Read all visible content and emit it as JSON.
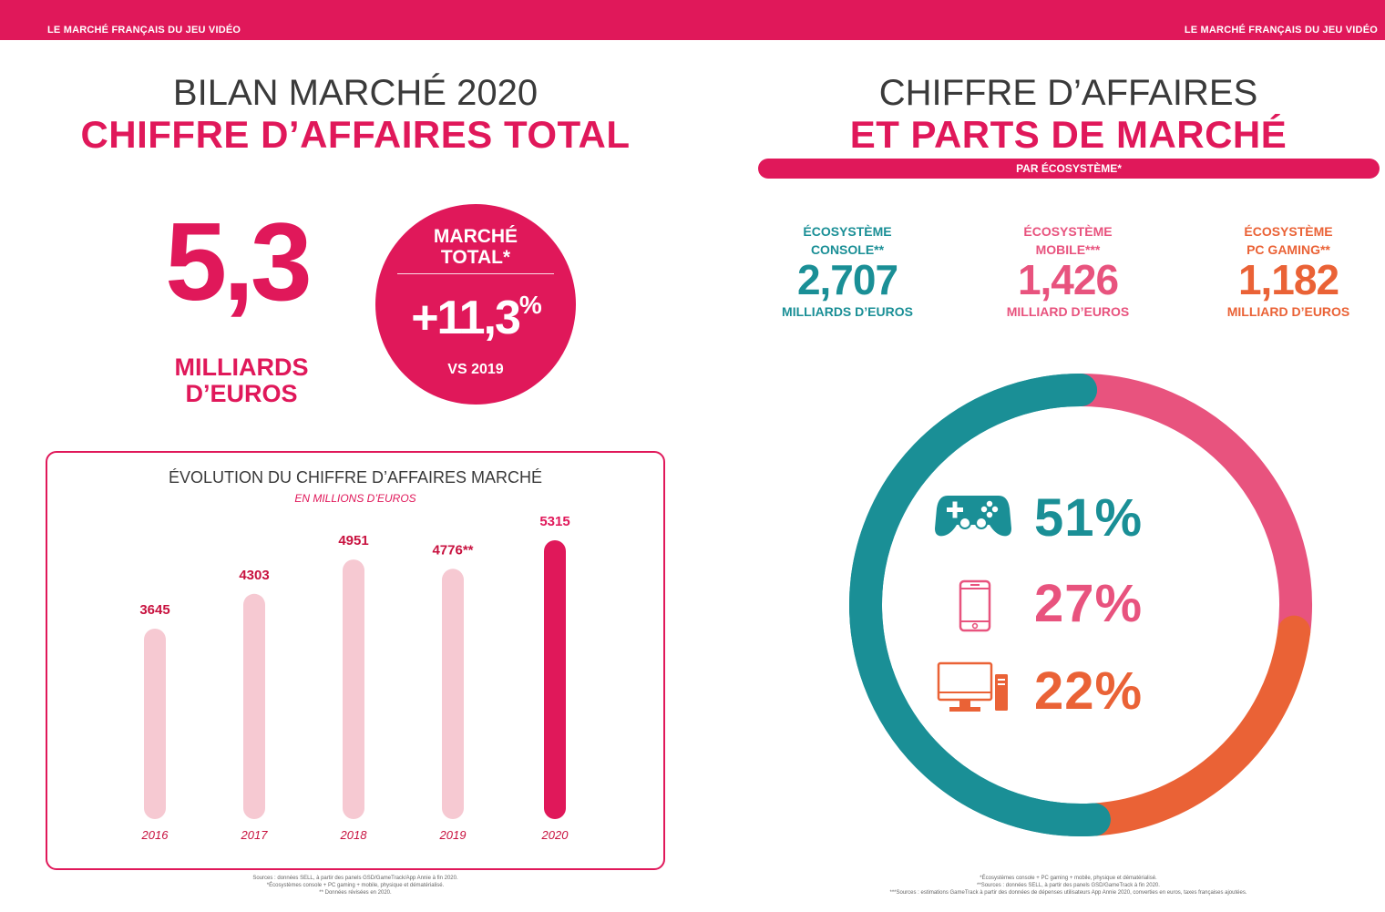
{
  "header": {
    "left_label": "LE MARCHÉ FRANÇAIS DU JEU VIDÉO",
    "right_label": "LE MARCHÉ FRANÇAIS DU JEU VIDÉO"
  },
  "colors": {
    "brand": "#e0185a",
    "console": "#1a8f96",
    "mobile": "#e8537e",
    "pc": "#ea6236",
    "bar_light": "#f6c9d2"
  },
  "left": {
    "title_line1": "BILAN MARCHÉ 2020",
    "title_line2": "CHIFFRE D’AFFAIRES TOTAL",
    "big_value": "5,3",
    "big_unit_line1": "MILLIARDS",
    "big_unit_line2": "D’EUROS",
    "circle": {
      "title_line1": "MARCHÉ",
      "title_line2": "TOTAL*",
      "value": "+11,3",
      "value_suffix": "%",
      "subtitle": "VS 2019"
    },
    "sources": [
      "Sources : données SELL, à partir des panels GSD/GameTrack/App Annie à fin 2020.",
      "*Écosystèmes console + PC gaming + mobile, physique et dématérialisé.",
      "** Données révisées en 2020."
    ]
  },
  "right": {
    "title_line1": "CHIFFRE D’AFFAIRES",
    "title_line2": "ET PARTS DE MARCHÉ",
    "pill": "PAR ÉCOSYSTÈME*",
    "ecosystems": [
      {
        "name_line1": "ÉCOSYSTÈME",
        "name_line2": "CONSOLE**",
        "value": "2,707",
        "unit": "MILLIARDS D’EUROS",
        "share": "51%"
      },
      {
        "name_line1": "ÉCOSYSTÈME",
        "name_line2": "MOBILE***",
        "value": "1,426",
        "unit": "MILLIARD D’EUROS",
        "share": "27%"
      },
      {
        "name_line1": "ÉCOSYSTÈME",
        "name_line2": "PC GAMING**",
        "value": "1,182",
        "unit": "MILLIARD D’EUROS",
        "share": "22%"
      }
    ],
    "icons": [
      "gamepad-icon",
      "smartphone-icon",
      "desktop-computer-icon"
    ],
    "sources": [
      "*Écosystèmes console + PC gaming + mobile, physique et dématérialisé.",
      "**Sources : données SELL, à partir des panels GSD/GameTrack à fin 2020.",
      "***Sources : estimations GameTrack à partir des données de dépenses utilisateurs App Annie 2020, converties en euros, taxes françaises ajoutées."
    ]
  },
  "chart_data": [
    {
      "type": "bar",
      "title": "ÉVOLUTION DU CHIFFRE D’AFFAIRES MARCHÉ",
      "subtitle": "EN MILLIONS D’EUROS",
      "categories": [
        "2016",
        "2017",
        "2018",
        "2019",
        "2020"
      ],
      "values": [
        3645,
        4303,
        4951,
        4776,
        5315
      ],
      "labels": [
        "3645",
        "4303",
        "4951",
        "4776**",
        "5315"
      ],
      "highlight": "2020"
    },
    {
      "type": "pie",
      "style": "donut",
      "categories": [
        "Console",
        "Mobile",
        "PC Gaming"
      ],
      "values": [
        51,
        27,
        22
      ],
      "labels": [
        "51%",
        "27%",
        "22%"
      ]
    }
  ]
}
